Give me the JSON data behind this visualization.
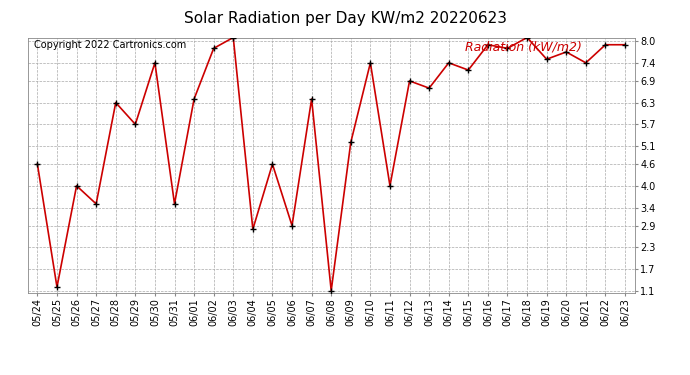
{
  "title": "Solar Radiation per Day KW/m2 20220623",
  "copyright": "Copyright 2022 Cartronics.com",
  "legend_label": "Radiation (kW/m2)",
  "dates": [
    "05/24",
    "05/25",
    "05/26",
    "05/27",
    "05/28",
    "05/29",
    "05/30",
    "05/31",
    "06/01",
    "06/02",
    "06/03",
    "06/04",
    "06/05",
    "06/06",
    "06/07",
    "06/08",
    "06/09",
    "06/10",
    "06/11",
    "06/12",
    "06/13",
    "06/14",
    "06/15",
    "06/16",
    "06/17",
    "06/18",
    "06/19",
    "06/20",
    "06/21",
    "06/22",
    "06/23"
  ],
  "values": [
    4.6,
    1.2,
    4.0,
    3.5,
    6.3,
    5.7,
    7.4,
    3.5,
    6.4,
    7.8,
    8.1,
    2.8,
    4.6,
    2.9,
    6.4,
    1.1,
    5.2,
    7.4,
    4.0,
    6.9,
    6.7,
    7.4,
    7.2,
    7.9,
    7.8,
    8.1,
    7.5,
    7.7,
    7.4,
    7.9,
    7.9
  ],
  "yticks": [
    1.1,
    1.7,
    2.3,
    2.9,
    3.4,
    4.0,
    4.6,
    5.1,
    5.7,
    6.3,
    6.9,
    7.4,
    8.0
  ],
  "ymin": 1.1,
  "ymax": 8.0,
  "line_color": "#cc0000",
  "marker_color": "#000000",
  "title_fontsize": 11,
  "copyright_fontsize": 7,
  "legend_fontsize": 9,
  "tick_fontsize": 7,
  "bg_color": "#ffffff",
  "grid_color": "#aaaaaa"
}
